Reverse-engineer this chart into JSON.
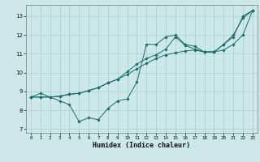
{
  "xlabel": "Humidex (Indice chaleur)",
  "background_color": "#cce8e8",
  "grid_color": "#aacece",
  "line_color": "#1a6b6b",
  "xlim": [
    -0.5,
    23.5
  ],
  "ylim": [
    6.8,
    13.6
  ],
  "xticks": [
    0,
    1,
    2,
    3,
    4,
    5,
    6,
    7,
    8,
    9,
    10,
    11,
    12,
    13,
    14,
    15,
    16,
    17,
    18,
    19,
    20,
    21,
    22,
    23
  ],
  "yticks": [
    7,
    8,
    9,
    10,
    11,
    12,
    13
  ],
  "line1_x": [
    0,
    1,
    2,
    3,
    4,
    5,
    6,
    7,
    8,
    9,
    10,
    11,
    12,
    13,
    14,
    15,
    16,
    17,
    18,
    19,
    20,
    21,
    22,
    23
  ],
  "line1_y": [
    8.7,
    8.9,
    8.7,
    8.5,
    8.3,
    7.4,
    7.6,
    7.5,
    8.1,
    8.5,
    8.6,
    9.5,
    11.5,
    11.5,
    11.9,
    12.0,
    11.5,
    11.4,
    11.1,
    11.1,
    11.5,
    11.9,
    13.0,
    13.3
  ],
  "line2_x": [
    0,
    1,
    2,
    3,
    4,
    5,
    6,
    7,
    8,
    9,
    10,
    11,
    12,
    13,
    14,
    15,
    16,
    17,
    18,
    19,
    20,
    21,
    22,
    23
  ],
  "line2_y": [
    8.7,
    8.7,
    8.7,
    8.75,
    8.85,
    8.9,
    9.05,
    9.2,
    9.45,
    9.65,
    9.9,
    10.2,
    10.5,
    10.75,
    10.95,
    11.05,
    11.15,
    11.2,
    11.1,
    11.1,
    11.2,
    11.5,
    12.0,
    13.3
  ],
  "line3_x": [
    0,
    1,
    2,
    3,
    4,
    5,
    6,
    7,
    8,
    9,
    10,
    11,
    12,
    13,
    14,
    15,
    16,
    17,
    18,
    19,
    20,
    21,
    22,
    23
  ],
  "line3_y": [
    8.7,
    8.7,
    8.7,
    8.75,
    8.85,
    8.9,
    9.05,
    9.2,
    9.45,
    9.65,
    10.05,
    10.45,
    10.75,
    10.95,
    11.25,
    11.9,
    11.45,
    11.25,
    11.1,
    11.1,
    11.5,
    12.0,
    12.9,
    13.3
  ]
}
